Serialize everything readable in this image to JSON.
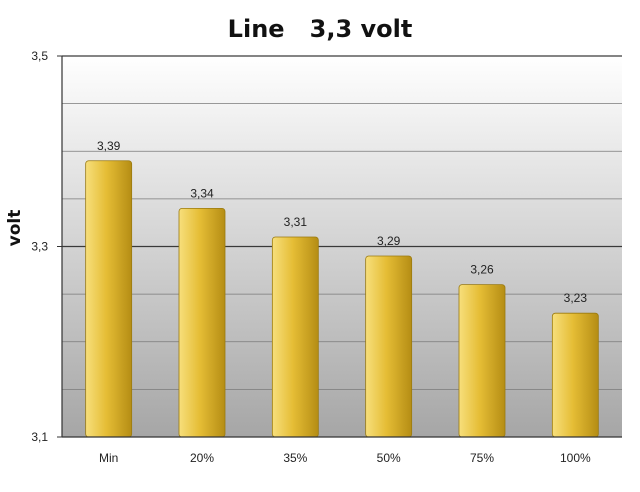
{
  "chart_data": {
    "type": "bar",
    "title": "Line   3,3 volt",
    "xlabel": "",
    "ylabel": "volt",
    "categories": [
      "Min",
      "20%",
      "35%",
      "50%",
      "75%",
      "100%"
    ],
    "values": [
      3.39,
      3.34,
      3.31,
      3.29,
      3.26,
      3.23
    ],
    "value_labels": [
      "3,39",
      "3,34",
      "3,31",
      "3,29",
      "3,26",
      "3,23"
    ],
    "ylim": [
      3.1,
      3.5
    ],
    "ytick_values": [
      3.1,
      3.3,
      3.5
    ],
    "ytick_labels": [
      "3,1",
      "3,3",
      "3,5"
    ],
    "grid": true,
    "legend": "none",
    "colors": {
      "bar_light": "#f7df7c",
      "bar_mid": "#e5bd35",
      "bar_dark": "#b58d14",
      "plot_top": "#ffffff",
      "plot_bottom": "#a6a6a6"
    }
  }
}
